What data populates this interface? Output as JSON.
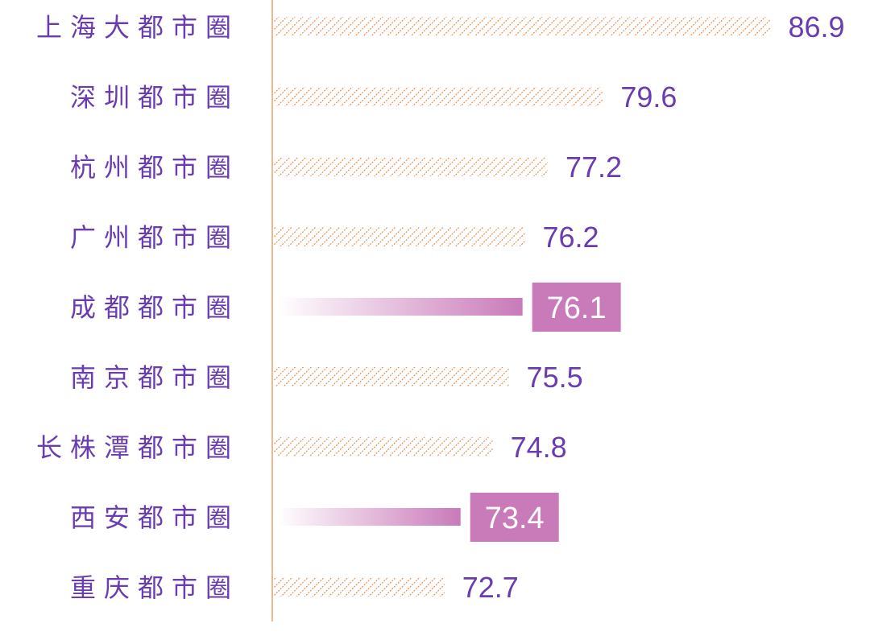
{
  "chart_data": {
    "type": "bar",
    "orientation": "horizontal",
    "categories": [
      "上海大都市圈",
      "深圳都市圈",
      "杭州都市圈",
      "广州都市圈",
      "成都都市圈",
      "南京都市圈",
      "长株潭都市圈",
      "西安都市圈",
      "重庆都市圈"
    ],
    "values": [
      86.9,
      79.6,
      77.2,
      76.2,
      76.1,
      75.5,
      74.8,
      73.4,
      72.7
    ],
    "highlighted": [
      false,
      false,
      false,
      false,
      true,
      false,
      false,
      true,
      false
    ],
    "xlim": [
      65.2,
      90
    ],
    "grid": false,
    "colors": {
      "hatch": "#e8823a",
      "highlight": "#c97ab9",
      "text": "#6a3cb0",
      "axis": "#f0b98c"
    }
  }
}
